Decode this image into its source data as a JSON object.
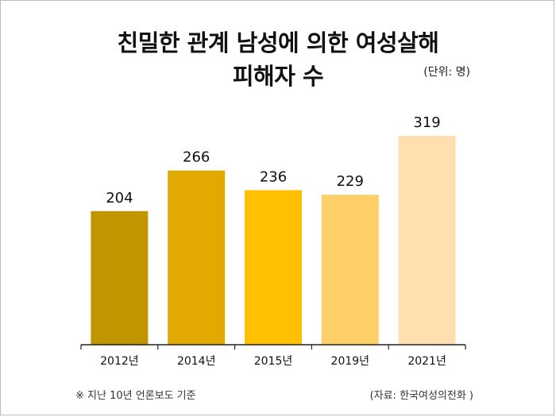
{
  "header": {
    "title_line1": "친밀한 관계 남성에 의한 여성살해",
    "title_line2": "피해자 수",
    "unit": "(단위: 명)"
  },
  "chart_data": {
    "type": "bar",
    "title": "친밀한 관계 남성에 의한 여성살해 피해자 수",
    "unit": "(단위: 명)",
    "categories": [
      "2012년",
      "2014년",
      "2015년",
      "2019년",
      "2021년"
    ],
    "values": [
      204,
      266,
      236,
      229,
      319
    ],
    "bar_colors": [
      "#C19500",
      "#E2A900",
      "#FFC000",
      "#FFD06A",
      "#FFDFAF"
    ],
    "xlabel": "",
    "ylabel": "",
    "ylim": [
      0,
      319
    ],
    "grid": false
  },
  "footer": {
    "note": "※ 지난 10년 언론보도 기준",
    "source": "(자료: 한국여성의전화 )"
  }
}
